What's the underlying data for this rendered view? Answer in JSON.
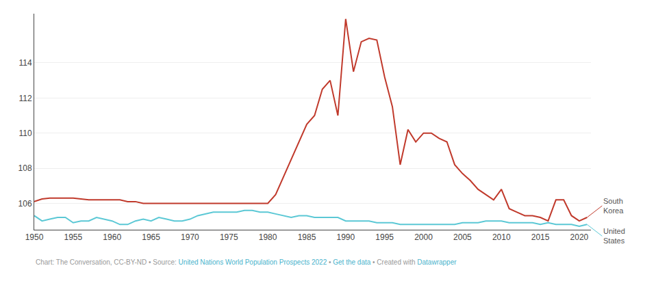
{
  "chart_data": {
    "type": "line",
    "x": [
      1950,
      1951,
      1952,
      1953,
      1954,
      1955,
      1956,
      1957,
      1958,
      1959,
      1960,
      1961,
      1962,
      1963,
      1964,
      1965,
      1966,
      1967,
      1968,
      1969,
      1970,
      1971,
      1972,
      1973,
      1974,
      1975,
      1976,
      1977,
      1978,
      1979,
      1980,
      1981,
      1982,
      1983,
      1984,
      1985,
      1986,
      1987,
      1988,
      1989,
      1990,
      1991,
      1992,
      1993,
      1994,
      1995,
      1996,
      1997,
      1998,
      1999,
      2000,
      2001,
      2002,
      2003,
      2004,
      2005,
      2006,
      2007,
      2008,
      2009,
      2010,
      2011,
      2012,
      2013,
      2014,
      2015,
      2016,
      2017,
      2018,
      2019,
      2020,
      2021
    ],
    "series": [
      {
        "name": "South Korea",
        "color": "#c0392b",
        "values": [
          106.1,
          106.25,
          106.3,
          106.3,
          106.3,
          106.3,
          106.25,
          106.2,
          106.2,
          106.2,
          106.2,
          106.2,
          106.1,
          106.1,
          106.0,
          106.0,
          106.0,
          106.0,
          106.0,
          106.0,
          106.0,
          106.0,
          106.0,
          106.0,
          106.0,
          106.0,
          106.0,
          106.0,
          106.0,
          106.0,
          106.0,
          106.5,
          107.5,
          108.5,
          109.5,
          110.5,
          111.0,
          112.5,
          113.0,
          111.0,
          116.5,
          113.5,
          115.2,
          115.4,
          115.3,
          113.2,
          111.5,
          108.2,
          110.2,
          109.5,
          110.0,
          110.0,
          109.7,
          109.5,
          108.2,
          107.7,
          107.3,
          106.8,
          106.5,
          106.2,
          106.8,
          105.7,
          105.5,
          105.3,
          105.3,
          105.2,
          105.0,
          106.2,
          106.2,
          105.3,
          105.0,
          105.2
        ]
      },
      {
        "name": "United States",
        "color": "#5bc8d5",
        "values": [
          105.3,
          105.0,
          105.1,
          105.2,
          105.2,
          104.9,
          105.0,
          105.0,
          105.2,
          105.1,
          105.0,
          104.8,
          104.8,
          105.0,
          105.1,
          105.0,
          105.2,
          105.1,
          105.0,
          105.0,
          105.1,
          105.3,
          105.4,
          105.5,
          105.5,
          105.5,
          105.5,
          105.6,
          105.6,
          105.5,
          105.5,
          105.4,
          105.3,
          105.2,
          105.3,
          105.3,
          105.2,
          105.2,
          105.2,
          105.2,
          105.0,
          105.0,
          105.0,
          105.0,
          104.9,
          104.9,
          104.9,
          104.8,
          104.8,
          104.8,
          104.8,
          104.8,
          104.8,
          104.8,
          104.8,
          104.9,
          104.9,
          104.9,
          105.0,
          105.0,
          105.0,
          104.9,
          104.9,
          104.9,
          104.9,
          104.8,
          104.9,
          104.8,
          104.8,
          104.8,
          104.7,
          104.8
        ]
      }
    ],
    "xlim": [
      1950,
      2021.5
    ],
    "xticks": [
      1950,
      1955,
      1960,
      1965,
      1970,
      1975,
      1980,
      1985,
      1990,
      1995,
      2000,
      2005,
      2010,
      2015,
      2020
    ],
    "ylim": [
      104.5,
      116.8
    ],
    "yticks": [
      106,
      108,
      110,
      112,
      114
    ],
    "grid": "y",
    "footer": [
      {
        "text": "Chart: The Conversation, CC-BY-ND • Source: ",
        "color": "#999999"
      },
      {
        "text": "United Nations World Population Prospects 2022",
        "color": "#4ab3cc"
      },
      {
        "text": " • ",
        "color": "#999999"
      },
      {
        "text": "Get the data",
        "color": "#4ab3cc"
      },
      {
        "text": " • Created with ",
        "color": "#999999"
      },
      {
        "text": "Datawrapper",
        "color": "#4ab3cc"
      }
    ]
  }
}
